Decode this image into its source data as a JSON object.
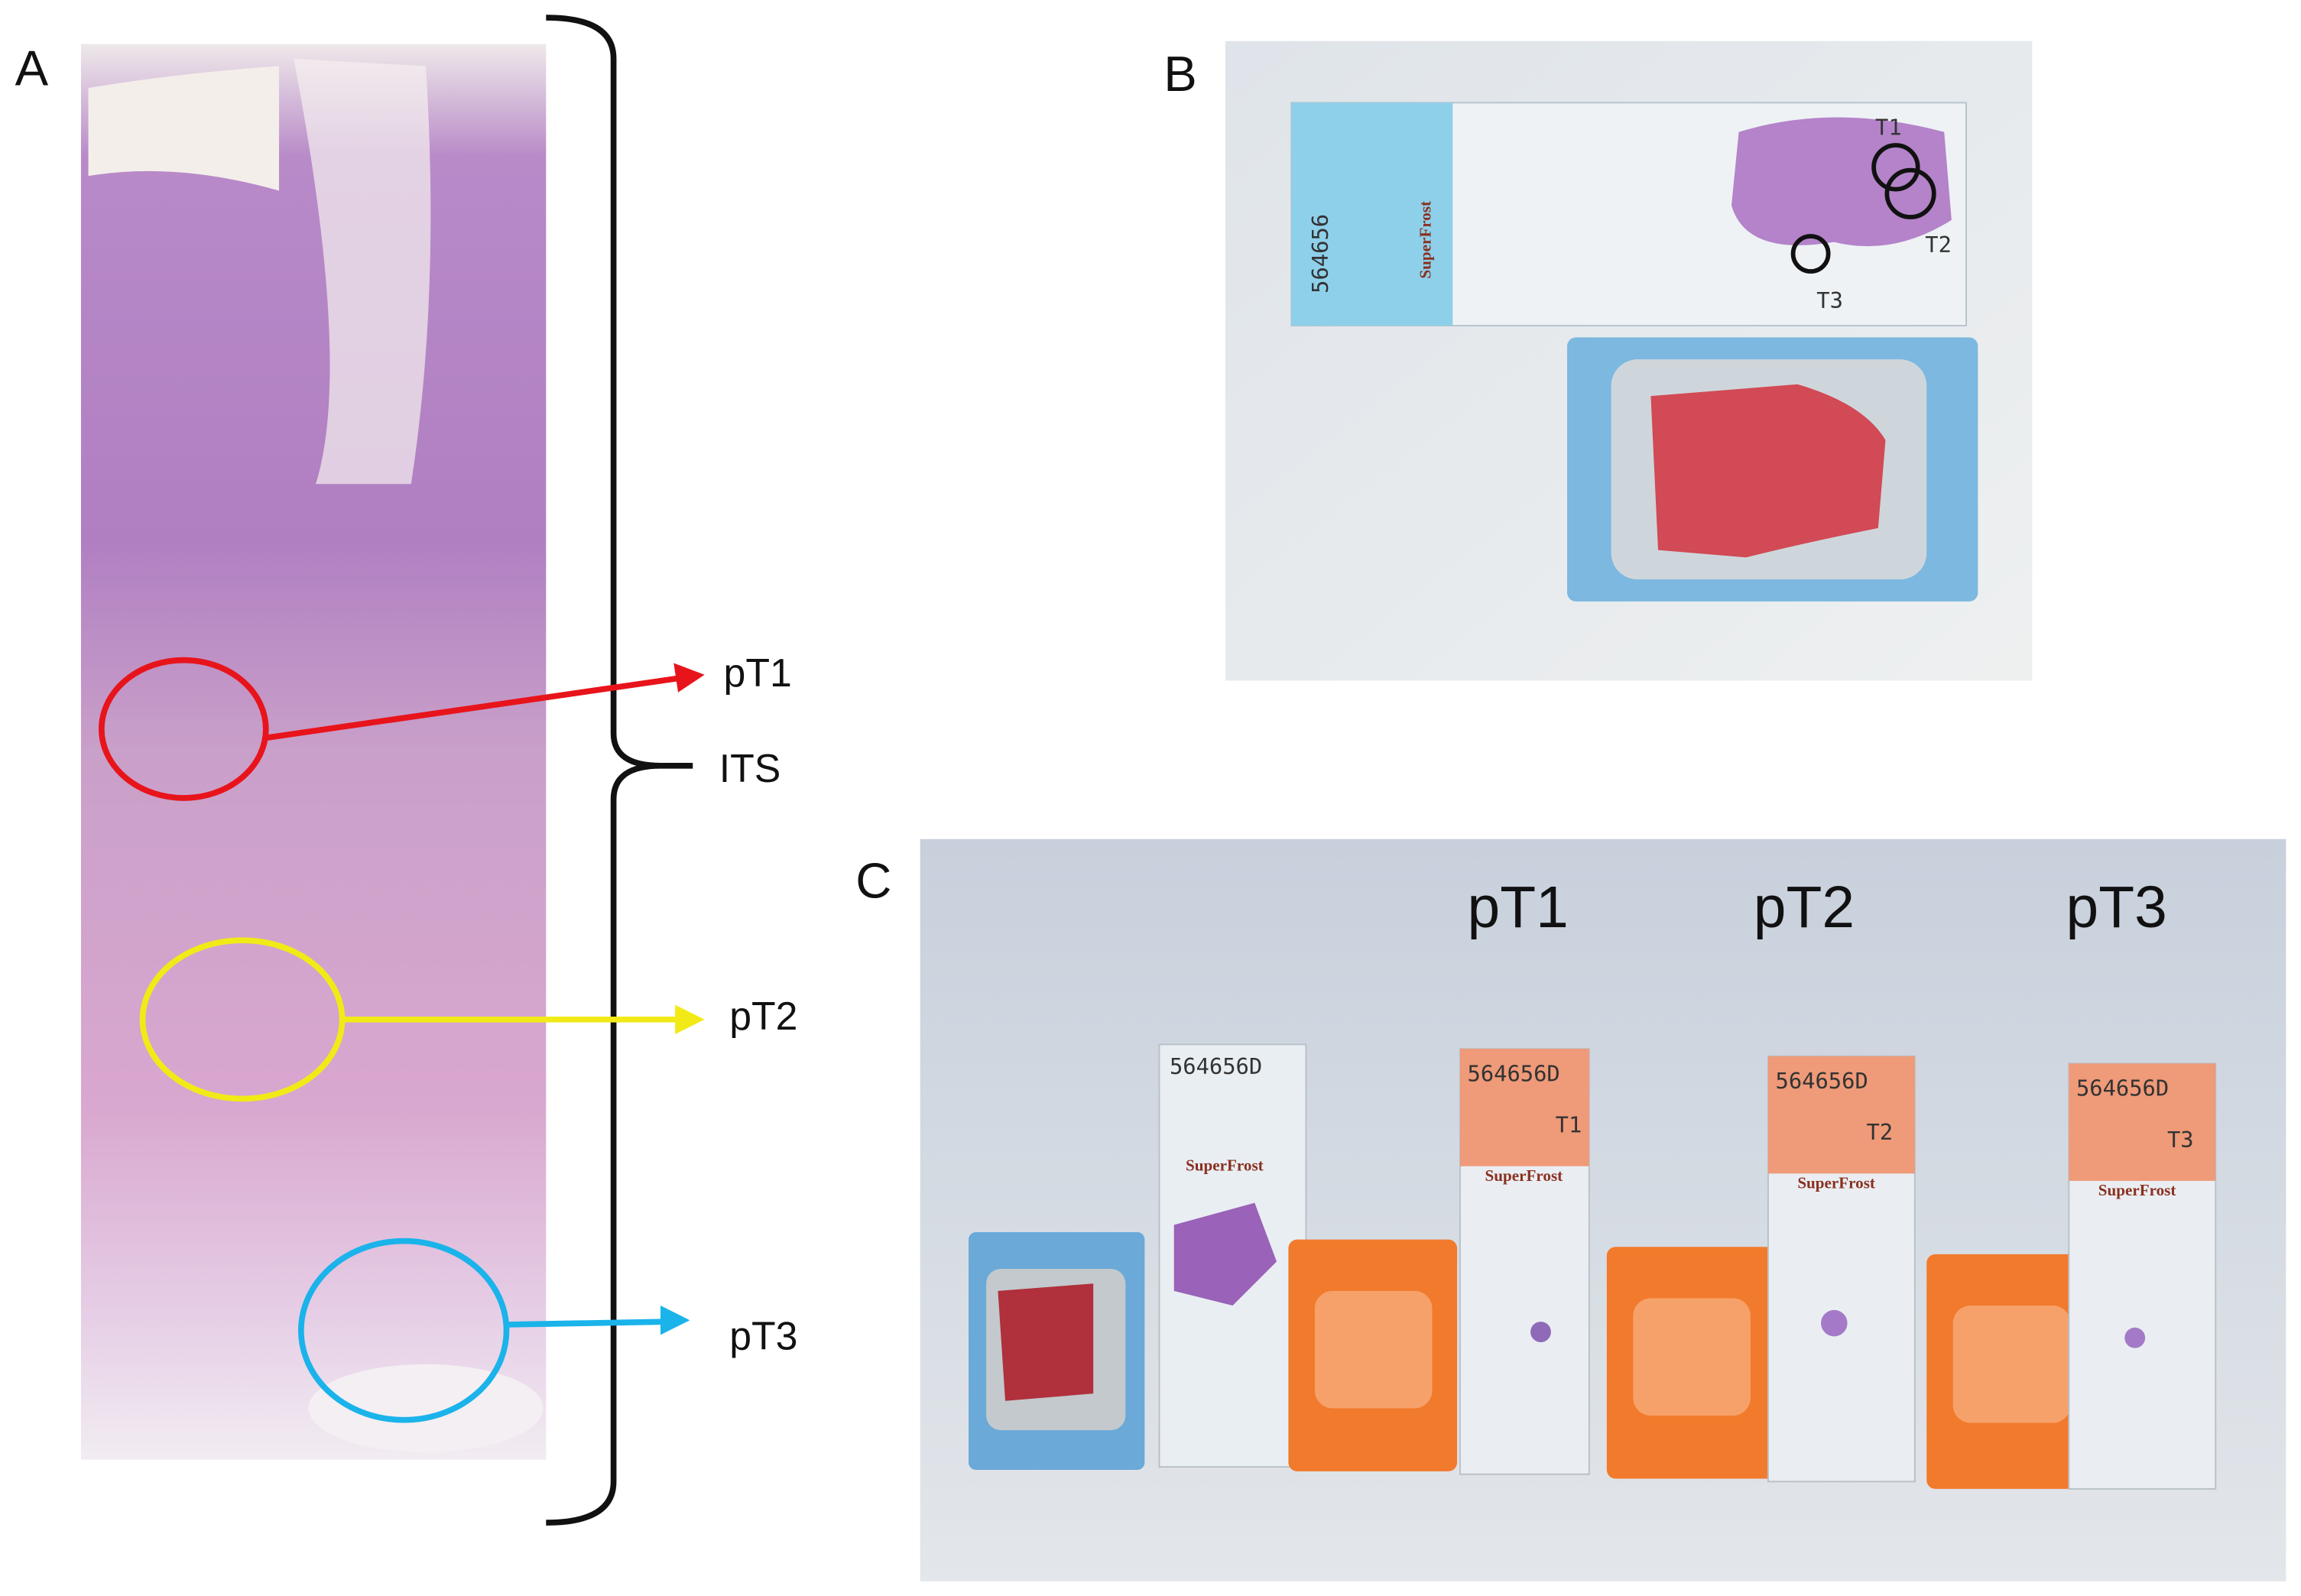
{
  "panels": [
    {
      "label": "A",
      "annotations": [
        "pT1",
        "ITS",
        "pT2",
        "pT3"
      ]
    },
    {
      "label": "B",
      "slide_number": "564656",
      "slide_brand": "SuperFrost",
      "marks": [
        "T1",
        "T2",
        "T3"
      ]
    },
    {
      "label": "C",
      "columns": [
        "pT1",
        "pT2",
        "pT3"
      ],
      "slide_numbers": [
        "564656D",
        "564656D",
        "564656D",
        "564656D"
      ],
      "slide_brand": "SuperFrost",
      "marks": [
        "T1",
        "T2",
        "T3"
      ]
    }
  ]
}
